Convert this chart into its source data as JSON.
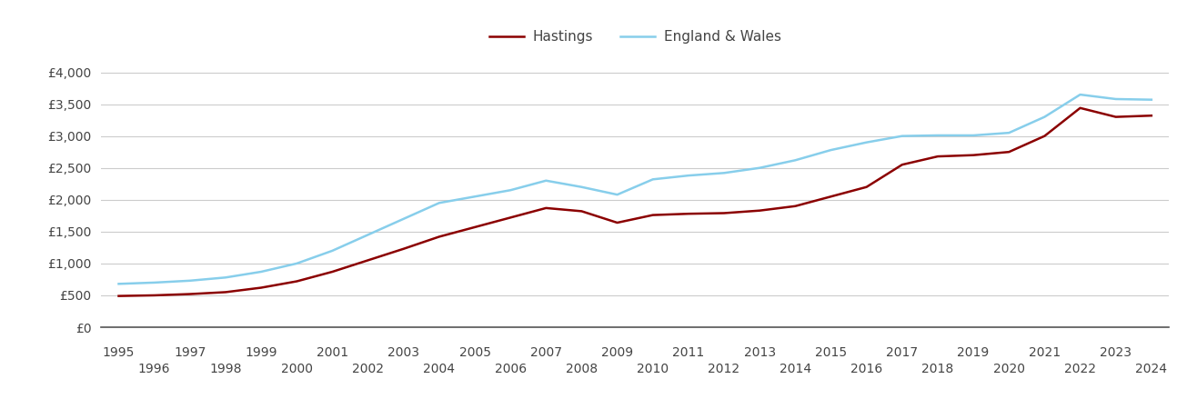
{
  "years": [
    1995,
    1996,
    1997,
    1998,
    1999,
    2000,
    2001,
    2002,
    2003,
    2004,
    2005,
    2006,
    2007,
    2008,
    2009,
    2010,
    2011,
    2012,
    2013,
    2014,
    2015,
    2016,
    2017,
    2018,
    2019,
    2020,
    2021,
    2022,
    2023,
    2024
  ],
  "hastings": [
    490,
    500,
    520,
    550,
    620,
    720,
    870,
    1050,
    1230,
    1420,
    1570,
    1720,
    1870,
    1820,
    1640,
    1760,
    1780,
    1790,
    1830,
    1900,
    2050,
    2200,
    2550,
    2680,
    2700,
    2750,
    3000,
    3440,
    3300,
    3320
  ],
  "england_wales": [
    680,
    700,
    730,
    780,
    870,
    1000,
    1200,
    1450,
    1700,
    1950,
    2050,
    2150,
    2300,
    2200,
    2080,
    2320,
    2380,
    2420,
    2500,
    2620,
    2780,
    2900,
    3000,
    3010,
    3010,
    3050,
    3300,
    3650,
    3580,
    3570
  ],
  "hastings_color": "#8B0000",
  "england_wales_color": "#87CEEB",
  "background_color": "#ffffff",
  "grid_color": "#cccccc",
  "yticks": [
    0,
    500,
    1000,
    1500,
    2000,
    2500,
    3000,
    3500,
    4000
  ],
  "ylim": [
    0,
    4300
  ],
  "xlim": [
    1994.5,
    2024.5
  ],
  "legend_hastings": "Hastings",
  "legend_ew": "England & Wales",
  "line_width": 1.8,
  "tick_label_color": "#444444",
  "tick_fontsize": 10,
  "legend_fontsize": 11
}
